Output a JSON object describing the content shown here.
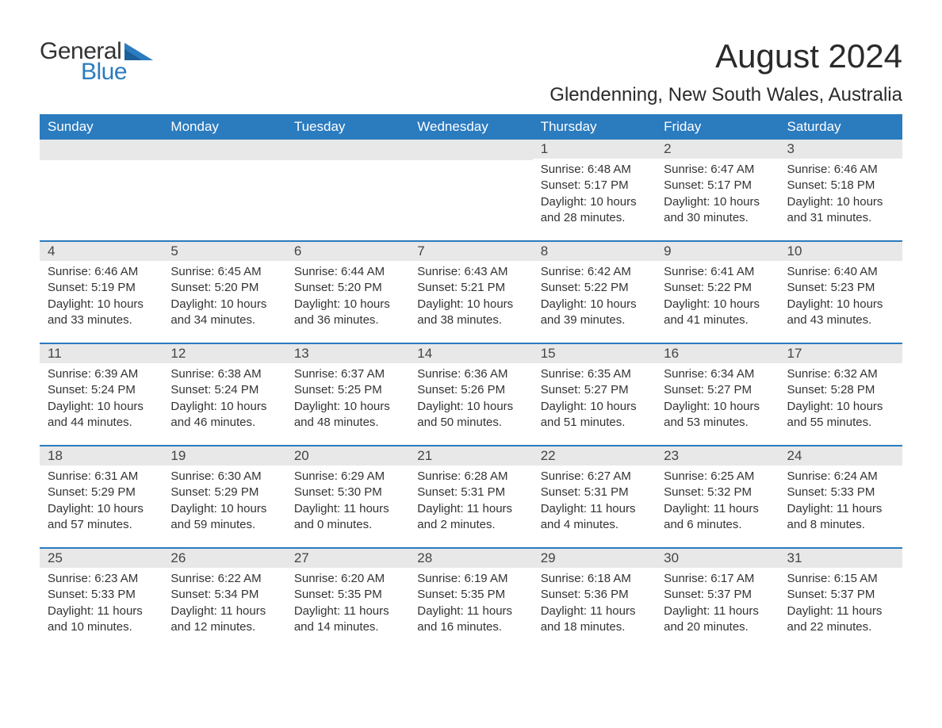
{
  "logo": {
    "word1": "General",
    "word2": "Blue",
    "shape_color": "#2b7bbf",
    "text_color_dark": "#333333",
    "text_color_blue": "#2b7bbf"
  },
  "header": {
    "month_title": "August 2024",
    "location": "Glendenning, New South Wales, Australia"
  },
  "colors": {
    "header_bg": "#2b7bbf",
    "header_text": "#ffffff",
    "daynum_bg": "#e8e8e8",
    "daynum_border": "#2b7bbf",
    "body_text": "#333333",
    "page_bg": "#ffffff"
  },
  "days_of_week": [
    "Sunday",
    "Monday",
    "Tuesday",
    "Wednesday",
    "Thursday",
    "Friday",
    "Saturday"
  ],
  "weeks": [
    [
      null,
      null,
      null,
      null,
      {
        "n": "1",
        "sunrise": "Sunrise: 6:48 AM",
        "sunset": "Sunset: 5:17 PM",
        "daylight": "Daylight: 10 hours and 28 minutes."
      },
      {
        "n": "2",
        "sunrise": "Sunrise: 6:47 AM",
        "sunset": "Sunset: 5:17 PM",
        "daylight": "Daylight: 10 hours and 30 minutes."
      },
      {
        "n": "3",
        "sunrise": "Sunrise: 6:46 AM",
        "sunset": "Sunset: 5:18 PM",
        "daylight": "Daylight: 10 hours and 31 minutes."
      }
    ],
    [
      {
        "n": "4",
        "sunrise": "Sunrise: 6:46 AM",
        "sunset": "Sunset: 5:19 PM",
        "daylight": "Daylight: 10 hours and 33 minutes."
      },
      {
        "n": "5",
        "sunrise": "Sunrise: 6:45 AM",
        "sunset": "Sunset: 5:20 PM",
        "daylight": "Daylight: 10 hours and 34 minutes."
      },
      {
        "n": "6",
        "sunrise": "Sunrise: 6:44 AM",
        "sunset": "Sunset: 5:20 PM",
        "daylight": "Daylight: 10 hours and 36 minutes."
      },
      {
        "n": "7",
        "sunrise": "Sunrise: 6:43 AM",
        "sunset": "Sunset: 5:21 PM",
        "daylight": "Daylight: 10 hours and 38 minutes."
      },
      {
        "n": "8",
        "sunrise": "Sunrise: 6:42 AM",
        "sunset": "Sunset: 5:22 PM",
        "daylight": "Daylight: 10 hours and 39 minutes."
      },
      {
        "n": "9",
        "sunrise": "Sunrise: 6:41 AM",
        "sunset": "Sunset: 5:22 PM",
        "daylight": "Daylight: 10 hours and 41 minutes."
      },
      {
        "n": "10",
        "sunrise": "Sunrise: 6:40 AM",
        "sunset": "Sunset: 5:23 PM",
        "daylight": "Daylight: 10 hours and 43 minutes."
      }
    ],
    [
      {
        "n": "11",
        "sunrise": "Sunrise: 6:39 AM",
        "sunset": "Sunset: 5:24 PM",
        "daylight": "Daylight: 10 hours and 44 minutes."
      },
      {
        "n": "12",
        "sunrise": "Sunrise: 6:38 AM",
        "sunset": "Sunset: 5:24 PM",
        "daylight": "Daylight: 10 hours and 46 minutes."
      },
      {
        "n": "13",
        "sunrise": "Sunrise: 6:37 AM",
        "sunset": "Sunset: 5:25 PM",
        "daylight": "Daylight: 10 hours and 48 minutes."
      },
      {
        "n": "14",
        "sunrise": "Sunrise: 6:36 AM",
        "sunset": "Sunset: 5:26 PM",
        "daylight": "Daylight: 10 hours and 50 minutes."
      },
      {
        "n": "15",
        "sunrise": "Sunrise: 6:35 AM",
        "sunset": "Sunset: 5:27 PM",
        "daylight": "Daylight: 10 hours and 51 minutes."
      },
      {
        "n": "16",
        "sunrise": "Sunrise: 6:34 AM",
        "sunset": "Sunset: 5:27 PM",
        "daylight": "Daylight: 10 hours and 53 minutes."
      },
      {
        "n": "17",
        "sunrise": "Sunrise: 6:32 AM",
        "sunset": "Sunset: 5:28 PM",
        "daylight": "Daylight: 10 hours and 55 minutes."
      }
    ],
    [
      {
        "n": "18",
        "sunrise": "Sunrise: 6:31 AM",
        "sunset": "Sunset: 5:29 PM",
        "daylight": "Daylight: 10 hours and 57 minutes."
      },
      {
        "n": "19",
        "sunrise": "Sunrise: 6:30 AM",
        "sunset": "Sunset: 5:29 PM",
        "daylight": "Daylight: 10 hours and 59 minutes."
      },
      {
        "n": "20",
        "sunrise": "Sunrise: 6:29 AM",
        "sunset": "Sunset: 5:30 PM",
        "daylight": "Daylight: 11 hours and 0 minutes."
      },
      {
        "n": "21",
        "sunrise": "Sunrise: 6:28 AM",
        "sunset": "Sunset: 5:31 PM",
        "daylight": "Daylight: 11 hours and 2 minutes."
      },
      {
        "n": "22",
        "sunrise": "Sunrise: 6:27 AM",
        "sunset": "Sunset: 5:31 PM",
        "daylight": "Daylight: 11 hours and 4 minutes."
      },
      {
        "n": "23",
        "sunrise": "Sunrise: 6:25 AM",
        "sunset": "Sunset: 5:32 PM",
        "daylight": "Daylight: 11 hours and 6 minutes."
      },
      {
        "n": "24",
        "sunrise": "Sunrise: 6:24 AM",
        "sunset": "Sunset: 5:33 PM",
        "daylight": "Daylight: 11 hours and 8 minutes."
      }
    ],
    [
      {
        "n": "25",
        "sunrise": "Sunrise: 6:23 AM",
        "sunset": "Sunset: 5:33 PM",
        "daylight": "Daylight: 11 hours and 10 minutes."
      },
      {
        "n": "26",
        "sunrise": "Sunrise: 6:22 AM",
        "sunset": "Sunset: 5:34 PM",
        "daylight": "Daylight: 11 hours and 12 minutes."
      },
      {
        "n": "27",
        "sunrise": "Sunrise: 6:20 AM",
        "sunset": "Sunset: 5:35 PM",
        "daylight": "Daylight: 11 hours and 14 minutes."
      },
      {
        "n": "28",
        "sunrise": "Sunrise: 6:19 AM",
        "sunset": "Sunset: 5:35 PM",
        "daylight": "Daylight: 11 hours and 16 minutes."
      },
      {
        "n": "29",
        "sunrise": "Sunrise: 6:18 AM",
        "sunset": "Sunset: 5:36 PM",
        "daylight": "Daylight: 11 hours and 18 minutes."
      },
      {
        "n": "30",
        "sunrise": "Sunrise: 6:17 AM",
        "sunset": "Sunset: 5:37 PM",
        "daylight": "Daylight: 11 hours and 20 minutes."
      },
      {
        "n": "31",
        "sunrise": "Sunrise: 6:15 AM",
        "sunset": "Sunset: 5:37 PM",
        "daylight": "Daylight: 11 hours and 22 minutes."
      }
    ]
  ]
}
